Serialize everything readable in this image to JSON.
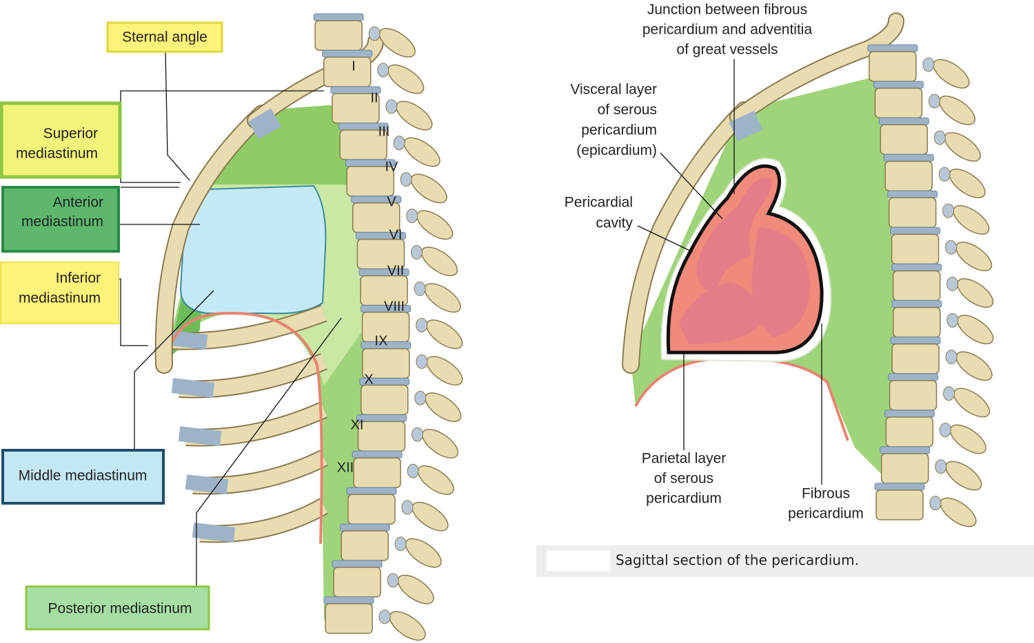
{
  "left": {
    "labels": [
      {
        "lines": [
          "Sternal angle"
        ]
      },
      {
        "lines": [
          "Superior",
          "mediastinum"
        ]
      },
      {
        "lines": [
          "Anterior",
          "mediastinum"
        ]
      },
      {
        "lines": [
          "Inferior",
          "mediastinum"
        ]
      },
      {
        "lines": [
          "Middle mediastinum"
        ]
      },
      {
        "lines": [
          "Posterior mediastinum"
        ]
      }
    ],
    "vertebrae": [
      "I",
      "II",
      "III",
      "IV",
      "V",
      "VI",
      "VII",
      "VIII",
      "IX",
      "X",
      "XI",
      "XII"
    ]
  },
  "right": {
    "labels": [
      {
        "lines": [
          "Junction between fibrous",
          "pericardium and adventitia",
          "of great vessels"
        ]
      },
      {
        "lines": [
          "Visceral layer",
          "of serous",
          "pericardium",
          "(epicardium)"
        ]
      },
      {
        "lines": [
          "Pericardial",
          "cavity"
        ]
      },
      {
        "lines": [
          "Parietal layer",
          "of serous",
          "pericardium"
        ]
      },
      {
        "lines": [
          "Fibrous",
          "pericardium"
        ]
      }
    ],
    "caption": "Sagittal section of the pericardium."
  }
}
